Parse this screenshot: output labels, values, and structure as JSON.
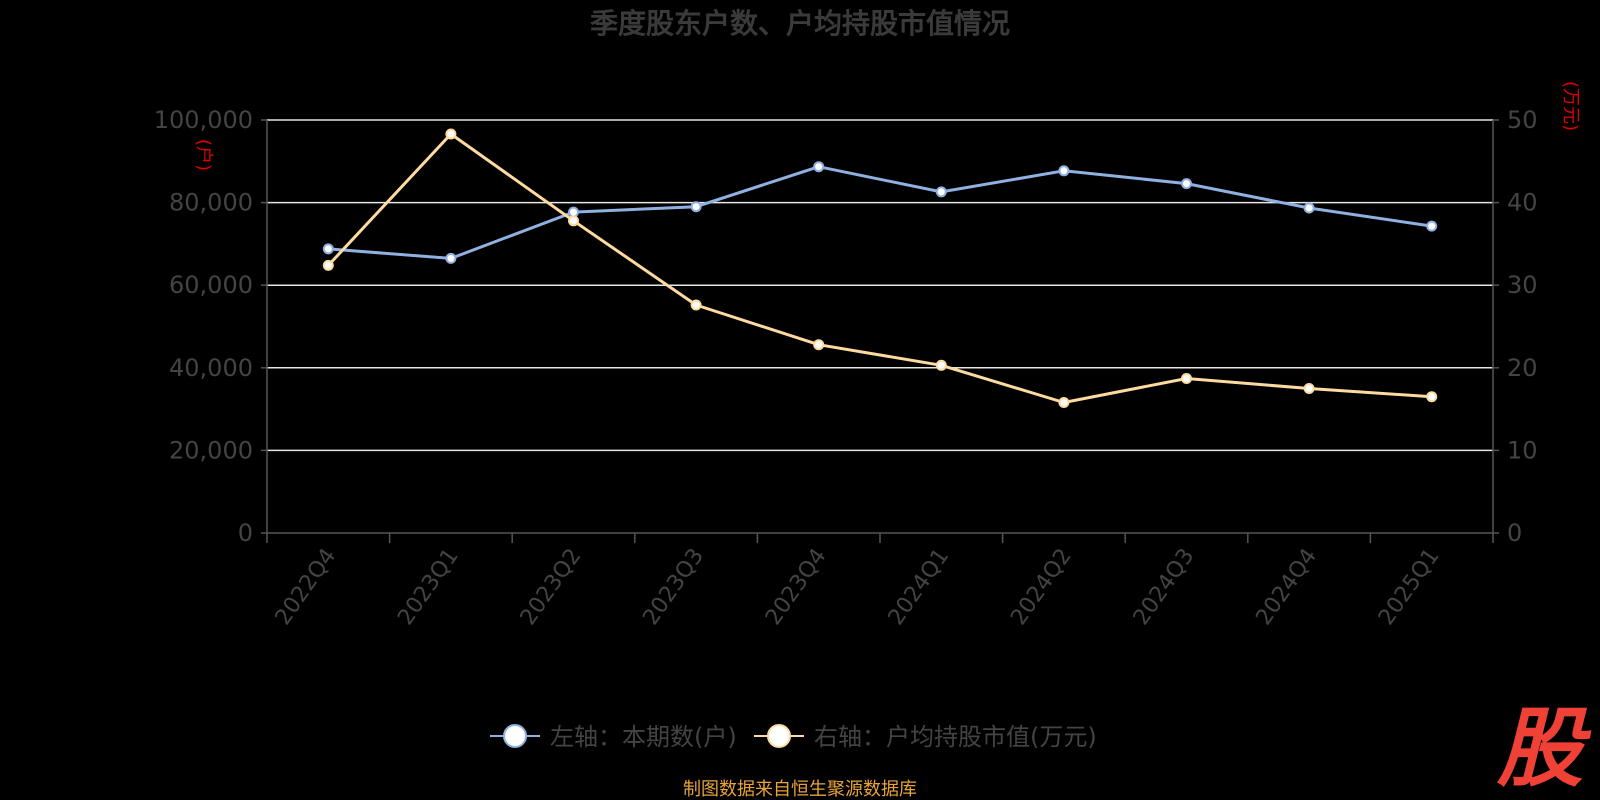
{
  "chart_data": {
    "type": "line",
    "title": "季度股东户数、户均持股市值情况",
    "categories": [
      "2022Q4",
      "2023Q1",
      "2023Q2",
      "2023Q3",
      "2023Q4",
      "2024Q1",
      "2024Q2",
      "2024Q3",
      "2024Q4",
      "2025Q1"
    ],
    "left_axis": {
      "unit_label": "(户)",
      "ylim": [
        0,
        100000
      ],
      "ticks": [
        "0",
        "20,000",
        "40,000",
        "60,000",
        "80,000",
        "100,000"
      ]
    },
    "right_axis": {
      "unit_label": "(万元)",
      "ylim": [
        0,
        50
      ],
      "ticks": [
        "0",
        "10",
        "20",
        "30",
        "40",
        "50"
      ]
    },
    "series": [
      {
        "name": "左轴：本期数(户)",
        "axis": "left",
        "color": "#8fb0e0",
        "values": [
          68800,
          66500,
          77700,
          79000,
          88700,
          82600,
          87700,
          84600,
          78700,
          74300
        ]
      },
      {
        "name": "右轴：户均持股市值(万元)",
        "axis": "right",
        "color": "#fddba0",
        "values": [
          32.4,
          48.3,
          37.8,
          27.6,
          22.8,
          20.3,
          15.8,
          18.7,
          17.5,
          16.5
        ]
      }
    ],
    "grid": true,
    "legend_position": "bottom-center"
  },
  "footer": {
    "source": "制图数据来自恒生聚源数据库",
    "logo": "股"
  }
}
